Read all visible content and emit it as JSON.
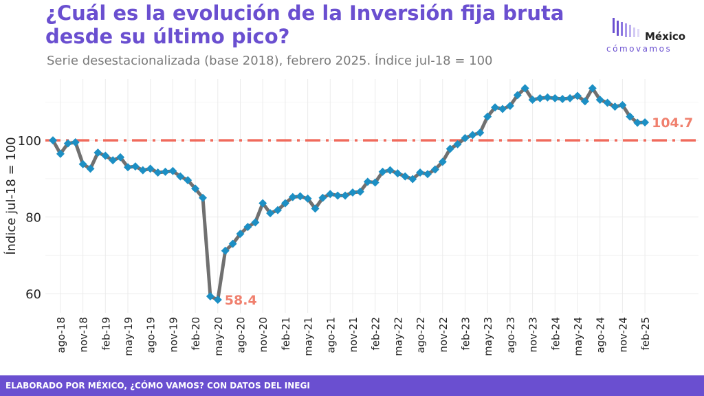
{
  "title": "¿Cuál es la evolución de la Inversión fija bruta desde su último pico?",
  "subtitle": "Serie desestacionalizada (base 2018), febrero 2025. Índice jul-18 = 100",
  "logo": {
    "name": "México",
    "tagline": "cómovamos"
  },
  "footer": "ELABORADO POR MÉXICO, ¿CÓMO VAMOS? CON DATOS DEL INEGI",
  "colors": {
    "brand": "#6a4fd0",
    "line": "#707070",
    "marker": "#1c8fc4",
    "reference": "#f06a5c",
    "annotation": "#f0806e"
  },
  "chart_data": {
    "type": "line",
    "ylabel": "Índice jul-18 = 100",
    "ylim": [
      55,
      116
    ],
    "yticks": [
      60,
      80,
      100
    ],
    "grid": true,
    "tick_labels": [
      "ago-18",
      "nov-18",
      "feb-19",
      "may-19",
      "ago-19",
      "nov-19",
      "feb-20",
      "may-20",
      "ago-20",
      "nov-20",
      "feb-21",
      "may-21",
      "ago-21",
      "nov-21",
      "feb-22",
      "may-22",
      "ago-22",
      "nov-22",
      "feb-23",
      "may-23",
      "ago-23",
      "nov-23",
      "feb-24",
      "may-24",
      "ago-24",
      "nov-24",
      "feb-25"
    ],
    "x_start": "jul-18",
    "values": [
      100.0,
      96.5,
      99.2,
      99.5,
      93.8,
      92.6,
      96.8,
      96.0,
      94.8,
      95.6,
      93.0,
      93.2,
      92.2,
      92.6,
      91.6,
      91.8,
      92.0,
      90.6,
      89.6,
      87.4,
      85.0,
      59.3,
      58.4,
      71.2,
      73.0,
      75.6,
      77.4,
      78.6,
      83.6,
      81.0,
      81.8,
      83.6,
      85.2,
      85.4,
      84.8,
      82.2,
      85.0,
      86.0,
      85.6,
      85.6,
      86.4,
      86.6,
      89.2,
      89.0,
      91.8,
      92.2,
      91.4,
      90.6,
      89.9,
      91.6,
      91.2,
      92.4,
      94.4,
      97.8,
      99.0,
      100.6,
      101.4,
      102.0,
      106.2,
      108.6,
      108.2,
      109.0,
      111.8,
      113.6,
      110.6,
      111.0,
      111.2,
      111.0,
      110.8,
      111.0,
      111.6,
      110.2,
      113.6,
      110.6,
      109.8,
      108.8,
      109.2,
      106.2,
      104.6,
      104.7
    ],
    "reference_line": 100,
    "annotations": [
      {
        "label": "58.4",
        "index": 22
      },
      {
        "label": "104.7",
        "index": 79
      }
    ]
  }
}
